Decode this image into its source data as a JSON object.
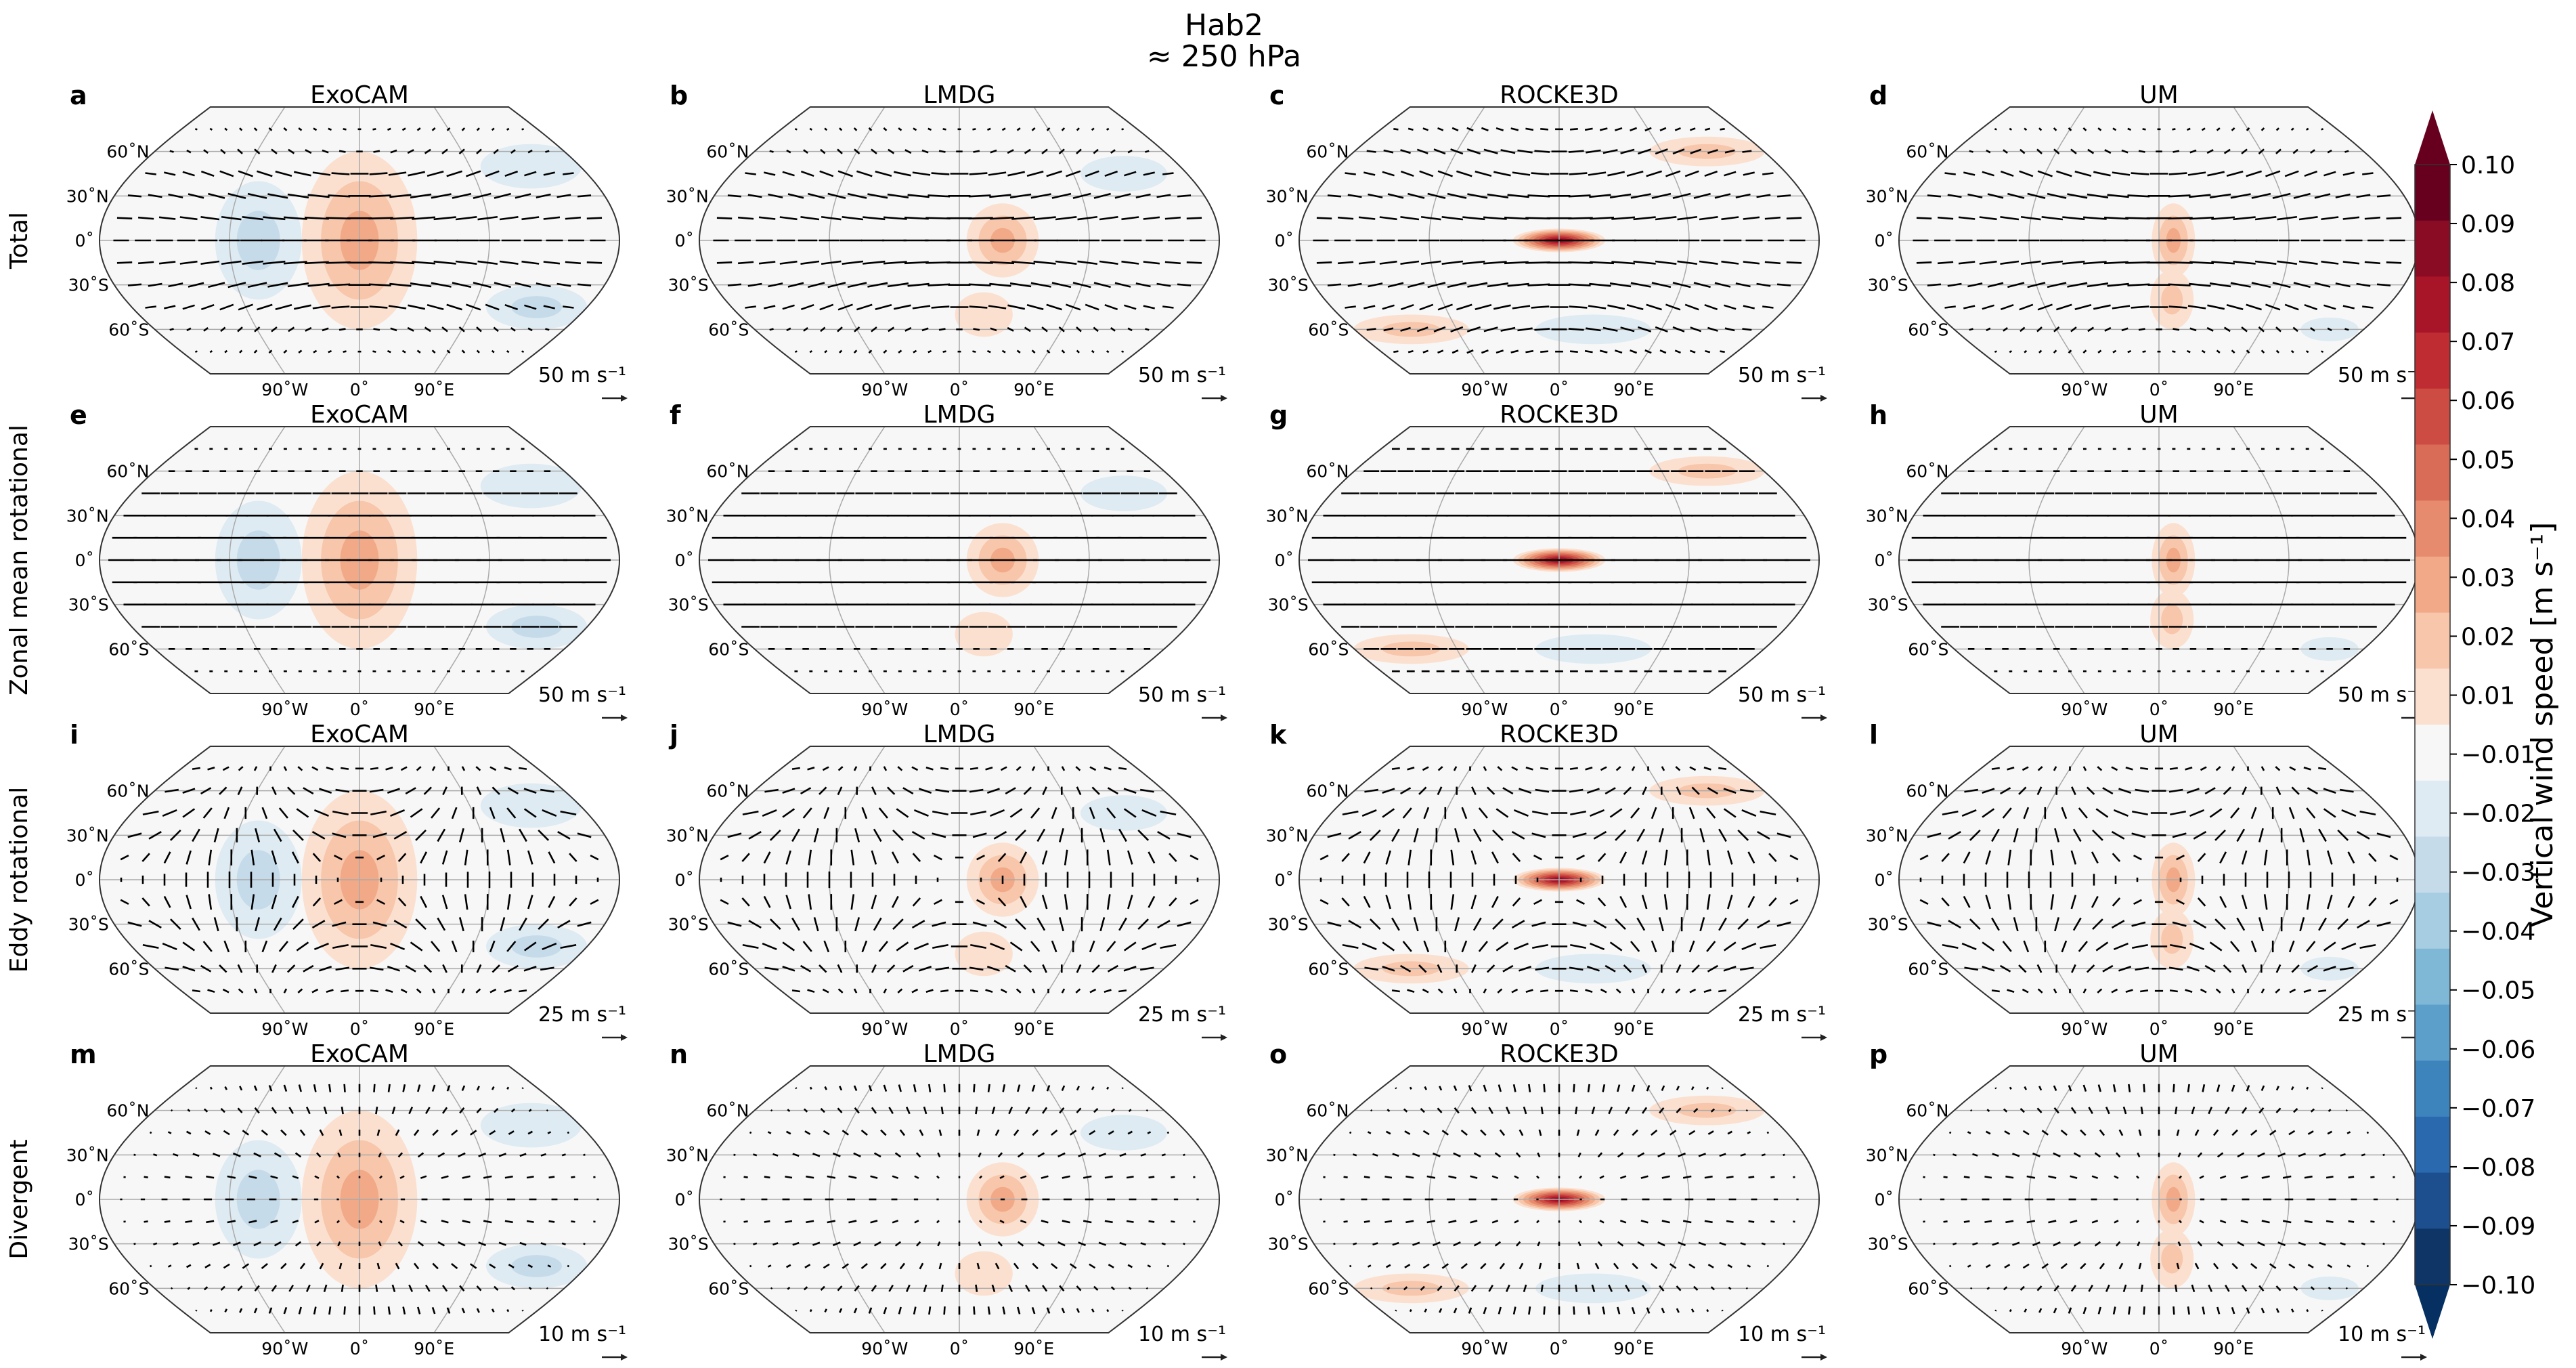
{
  "figure": {
    "title_line1": "Hab2",
    "title_line2": "≈ 250 hPa"
  },
  "models": [
    "ExoCAM",
    "LMDG",
    "ROCKE3D",
    "UM"
  ],
  "rows": [
    {
      "label": "Total",
      "letters": [
        "a",
        "b",
        "c",
        "d"
      ],
      "scale": "50 m s⁻¹"
    },
    {
      "label": "Zonal mean rotational",
      "letters": [
        "e",
        "f",
        "g",
        "h"
      ],
      "scale": "50 m s⁻¹"
    },
    {
      "label": "Eddy rotational",
      "letters": [
        "i",
        "j",
        "k",
        "l"
      ],
      "scale": "25 m s⁻¹"
    },
    {
      "label": "Divergent",
      "letters": [
        "m",
        "n",
        "o",
        "p"
      ],
      "scale": "10 m s⁻¹"
    }
  ],
  "axes": {
    "lat_ticks": [
      "60˚N",
      "30˚N",
      "0˚",
      "30˚S",
      "60˚S"
    ],
    "lon_ticks": [
      "90˚W",
      "0˚",
      "90˚E"
    ]
  },
  "colorbar": {
    "label": "Vertical wind speed [m s⁻¹]",
    "ticks": [
      "0.10",
      "0.09",
      "0.08",
      "0.07",
      "0.06",
      "0.05",
      "0.04",
      "0.03",
      "0.02",
      "0.01",
      "−0.01",
      "−0.02",
      "−0.03",
      "−0.04",
      "−0.05",
      "−0.06",
      "−0.07",
      "−0.08",
      "−0.09",
      "−0.10"
    ],
    "colors": [
      "#67001f",
      "#8a0b24",
      "#a81529",
      "#bf2d33",
      "#cc4c44",
      "#d96c57",
      "#e68b6e",
      "#f1a987",
      "#f7c6ab",
      "#fbe0d0",
      "#f7f7f7",
      "#deebf2",
      "#c5dbea",
      "#a6cde2",
      "#7fb8d7",
      "#5c9fcb",
      "#3d84bc",
      "#2a69ad",
      "#1d4f8e",
      "#0e3566",
      "#053061"
    ],
    "extend_top": "#67001f",
    "extend_bottom": "#053061"
  },
  "chart_data": {
    "type": "map_contourf_quiver",
    "projection": "Robinson",
    "variable": "vertical wind speed",
    "units": "m s⁻¹",
    "levels": [
      -0.1,
      -0.09,
      -0.08,
      -0.07,
      -0.06,
      -0.05,
      -0.04,
      -0.03,
      -0.02,
      -0.01,
      0.01,
      0.02,
      0.03,
      0.04,
      0.05,
      0.06,
      0.07,
      0.08,
      0.09,
      0.1
    ],
    "panels": {
      "ExoCAM": {
        "peak_w": 0.025,
        "feature": "broad upwelling band near 0˚, weak downwelling west and east",
        "blobs": [
          {
            "lon": 0,
            "lat": 0,
            "w": 0.025,
            "rlon": 40,
            "rlat": 60
          },
          {
            "lon": -70,
            "lat": 0,
            "w": -0.02,
            "rlon": 30,
            "rlat": 40
          },
          {
            "lon": 140,
            "lat": -45,
            "w": -0.015,
            "rlon": 35,
            "rlat": 15
          },
          {
            "lon": 140,
            "lat": 50,
            "w": -0.012,
            "rlon": 35,
            "rlat": 15
          }
        ]
      },
      "LMDG": {
        "peak_w": 0.03,
        "feature": "upwelling near 30˚E on the equator",
        "blobs": [
          {
            "lon": 30,
            "lat": 0,
            "w": 0.03,
            "rlon": 25,
            "rlat": 25
          },
          {
            "lon": 20,
            "lat": -50,
            "w": 0.013,
            "rlon": 20,
            "rlat": 15
          },
          {
            "lon": 130,
            "lat": 45,
            "w": -0.012,
            "rlon": 30,
            "rlat": 12
          }
        ]
      },
      "ROCKE3D": {
        "peak_w": 0.085,
        "feature": "strong equatorial upwelling near 0˚",
        "blobs": [
          {
            "lon": 0,
            "lat": 0,
            "w": 0.085,
            "rlon": 32,
            "rlat": 8
          },
          {
            "lon": -130,
            "lat": -60,
            "w": 0.015,
            "rlon": 40,
            "rlat": 10
          },
          {
            "lon": 130,
            "lat": 60,
            "w": 0.015,
            "rlon": 40,
            "rlat": 10
          },
          {
            "lon": 30,
            "lat": -60,
            "w": -0.012,
            "rlon": 40,
            "rlat": 10
          }
        ]
      },
      "UM": {
        "peak_w": 0.03,
        "feature": "upwelling near 10˚E on the equator",
        "blobs": [
          {
            "lon": 10,
            "lat": 0,
            "w": 0.03,
            "rlon": 15,
            "rlat": 25
          },
          {
            "lon": 10,
            "lat": -40,
            "w": 0.015,
            "rlon": 15,
            "rlat": 20
          },
          {
            "lon": 150,
            "lat": -60,
            "w": -0.012,
            "rlon": 20,
            "rlat": 8
          }
        ]
      }
    },
    "wind_rows": {
      "Total": {
        "reference_vector": 50
      },
      "Zonal mean rotational": {
        "reference_vector": 50
      },
      "Eddy rotational": {
        "reference_vector": 25
      },
      "Divergent": {
        "reference_vector": 10
      }
    }
  }
}
